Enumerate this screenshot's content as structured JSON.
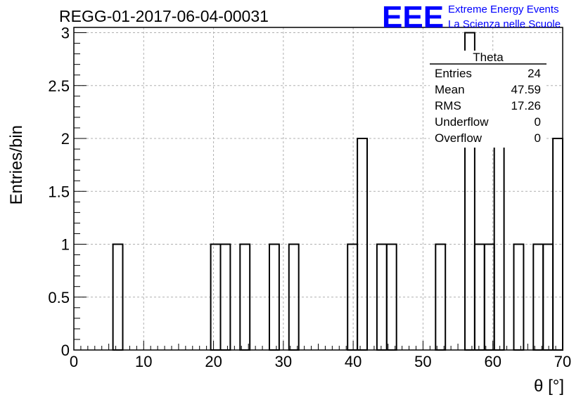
{
  "chart_data": {
    "type": "bar",
    "title": "REGG-01-2017-06-04-00031",
    "xlabel": "θ [°]",
    "ylabel": "Entries/bin",
    "xlim": [
      0,
      70
    ],
    "ylim": [
      0,
      3.05
    ],
    "bin_width": 1.4,
    "grid": true,
    "x_ticks": [
      "0",
      "10",
      "20",
      "30",
      "40",
      "50",
      "60",
      "70"
    ],
    "y_ticks": [
      "0",
      "0.5",
      "1",
      "1.5",
      "2",
      "2.5",
      "3"
    ],
    "x_tick_values": [
      0,
      10,
      20,
      30,
      40,
      50,
      60,
      70
    ],
    "y_tick_values": [
      0,
      0.5,
      1,
      1.5,
      2,
      2.5,
      3
    ],
    "bins": [
      {
        "x": 5.6,
        "value": 1
      },
      {
        "x": 19.6,
        "value": 1
      },
      {
        "x": 21.0,
        "value": 1
      },
      {
        "x": 23.8,
        "value": 1
      },
      {
        "x": 28.0,
        "value": 1
      },
      {
        "x": 30.8,
        "value": 1
      },
      {
        "x": 39.2,
        "value": 1
      },
      {
        "x": 40.6,
        "value": 2
      },
      {
        "x": 43.4,
        "value": 1
      },
      {
        "x": 44.8,
        "value": 1
      },
      {
        "x": 51.8,
        "value": 1
      },
      {
        "x": 56.0,
        "value": 3
      },
      {
        "x": 57.4,
        "value": 1
      },
      {
        "x": 58.8,
        "value": 1
      },
      {
        "x": 60.2,
        "value": 2
      },
      {
        "x": 63.0,
        "value": 1
      },
      {
        "x": 65.8,
        "value": 1
      },
      {
        "x": 67.2,
        "value": 1
      },
      {
        "x": 68.6,
        "value": 2
      }
    ],
    "stats_box": {
      "name": "Theta",
      "rows": [
        {
          "label": "Entries",
          "value": "24"
        },
        {
          "label": "Mean",
          "value": "47.59"
        },
        {
          "label": "RMS",
          "value": "17.26"
        },
        {
          "label": "Underflow",
          "value": "0"
        },
        {
          "label": "Overflow",
          "value": "0"
        }
      ]
    }
  },
  "logo": {
    "mark": "EEE",
    "line1": "Extreme Energy Events",
    "line2": "La Scienza nelle Scuole",
    "color": "#0000ff"
  }
}
